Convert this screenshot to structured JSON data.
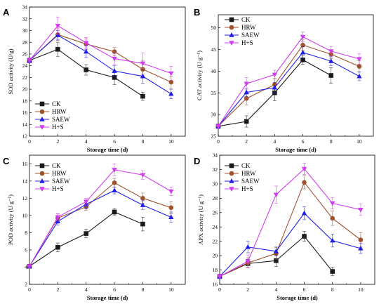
{
  "colors": {
    "CK": "#1a1a1a",
    "HRW": "#a0522d",
    "SAEW": "#1f1fe6",
    "H+S": "#d23cf0"
  },
  "markers": {
    "CK": "square",
    "HRW": "circle",
    "SAEW": "triangle-up",
    "H+S": "triangle-down"
  },
  "chart_data": [
    {
      "panel": "A",
      "type": "line",
      "ylabel": "SOD activity (U/g)",
      "xlabel": "Storage time (d)",
      "xlim": [
        0,
        11
      ],
      "ylim": [
        12,
        34
      ],
      "xticks": [
        0,
        2,
        4,
        6,
        8,
        10
      ],
      "yticks": [
        12,
        14,
        16,
        18,
        20,
        22,
        24,
        26,
        28,
        30,
        32,
        34
      ],
      "legend": "bottom-left",
      "series": [
        {
          "name": "CK",
          "x": [
            0,
            2,
            4,
            6,
            8
          ],
          "values": [
            24.9,
            26.8,
            23.3,
            22.0,
            18.8
          ],
          "err": [
            0.4,
            1.2,
            0.9,
            1.2,
            0.7
          ]
        },
        {
          "name": "HRW",
          "x": [
            0,
            2,
            4,
            6,
            8,
            10
          ],
          "values": [
            24.9,
            29.3,
            27.7,
            26.4,
            23.4,
            21.2
          ],
          "err": [
            0.4,
            1.0,
            0.9,
            0.7,
            1.5,
            1.0
          ]
        },
        {
          "name": "SAEW",
          "x": [
            0,
            2,
            4,
            6,
            8,
            10
          ],
          "values": [
            24.9,
            29.2,
            26.4,
            23.1,
            22.2,
            19.2
          ],
          "err": [
            0.4,
            0.8,
            1.0,
            0.9,
            1.2,
            0.8
          ]
        },
        {
          "name": "H+S",
          "x": [
            0,
            2,
            4,
            6,
            8,
            10
          ],
          "values": [
            24.9,
            30.8,
            27.9,
            25.2,
            24.4,
            22.7
          ],
          "err": [
            0.4,
            1.5,
            0.9,
            1.0,
            1.8,
            1.2
          ]
        }
      ]
    },
    {
      "panel": "B",
      "type": "line",
      "ylabel": "CAT activity (U g⁻¹)",
      "xlabel": "Storage time (d)",
      "xlim": [
        0,
        11
      ],
      "ylim": [
        25,
        53
      ],
      "xticks": [
        0,
        2,
        4,
        6,
        8,
        10
      ],
      "yticks": [
        25,
        30,
        35,
        40,
        45,
        50
      ],
      "legend": "top-left",
      "series": [
        {
          "name": "CK",
          "x": [
            0,
            2,
            4,
            6,
            8
          ],
          "values": [
            27.3,
            28.4,
            35.0,
            42.6,
            39.0
          ],
          "err": [
            0.5,
            1.3,
            1.8,
            1.0,
            1.8
          ]
        },
        {
          "name": "HRW",
          "x": [
            0,
            2,
            4,
            6,
            8,
            10
          ],
          "values": [
            27.3,
            33.7,
            36.9,
            46.0,
            43.9,
            41.1
          ],
          "err": [
            0.5,
            1.5,
            1.4,
            1.2,
            1.0,
            1.3
          ]
        },
        {
          "name": "SAEW",
          "x": [
            0,
            2,
            4,
            6,
            8,
            10
          ],
          "values": [
            27.3,
            35.1,
            36.2,
            44.3,
            42.3,
            38.8
          ],
          "err": [
            0.5,
            1.0,
            1.2,
            1.3,
            1.0,
            1.0
          ]
        },
        {
          "name": "H+S",
          "x": [
            0,
            2,
            4,
            6,
            8,
            10
          ],
          "values": [
            27.3,
            37.1,
            39.2,
            47.9,
            44.6,
            42.8
          ],
          "err": [
            0.5,
            1.4,
            1.0,
            1.1,
            1.0,
            1.2
          ]
        }
      ]
    },
    {
      "panel": "C",
      "type": "line",
      "ylabel": "POD activity (U g⁻¹)",
      "xlabel": "Storage time (d)",
      "xlim": [
        0,
        11
      ],
      "ylim": [
        2,
        17
      ],
      "xticks": [
        0,
        2,
        4,
        6,
        8,
        10
      ],
      "yticks": [
        2,
        4,
        6,
        8,
        10,
        12,
        14,
        16
      ],
      "legend": "top-left",
      "series": [
        {
          "name": "CK",
          "x": [
            0,
            2,
            4,
            6,
            8
          ],
          "values": [
            4.1,
            6.3,
            7.9,
            10.4,
            9.0
          ],
          "err": [
            0.2,
            0.5,
            0.5,
            0.4,
            0.8
          ]
        },
        {
          "name": "HRW",
          "x": [
            0,
            2,
            4,
            6,
            8,
            10
          ],
          "values": [
            4.1,
            9.7,
            11.0,
            13.8,
            12.0,
            10.9
          ],
          "err": [
            0.2,
            0.5,
            0.4,
            0.5,
            0.6,
            0.7
          ]
        },
        {
          "name": "SAEW",
          "x": [
            0,
            2,
            4,
            6,
            8,
            10
          ],
          "values": [
            4.1,
            9.3,
            11.3,
            12.9,
            11.2,
            9.8
          ],
          "err": [
            0.2,
            0.4,
            0.5,
            0.4,
            0.5,
            0.6
          ]
        },
        {
          "name": "H+S",
          "x": [
            0,
            2,
            4,
            6,
            8,
            10
          ],
          "values": [
            4.1,
            9.8,
            11.6,
            15.3,
            14.7,
            12.8
          ],
          "err": [
            0.2,
            0.4,
            0.4,
            0.7,
            0.5,
            0.5
          ]
        }
      ]
    },
    {
      "panel": "D",
      "type": "line",
      "ylabel": "APX activity (U g⁻¹)",
      "xlabel": "Storage time (d)",
      "xlim": [
        0,
        11
      ],
      "ylim": [
        16,
        34
      ],
      "xticks": [
        0,
        2,
        4,
        6,
        8,
        10
      ],
      "yticks": [
        16,
        18,
        20,
        22,
        24,
        26,
        28,
        30,
        32,
        34
      ],
      "legend": "top-left",
      "series": [
        {
          "name": "CK",
          "x": [
            0,
            2,
            4,
            6,
            8
          ],
          "values": [
            17.1,
            18.9,
            19.3,
            22.7,
            17.8
          ],
          "err": [
            0.3,
            0.6,
            0.8,
            0.7,
            0.6
          ]
        },
        {
          "name": "HRW",
          "x": [
            0,
            2,
            4,
            6,
            8,
            10
          ],
          "values": [
            17.1,
            19.0,
            20.3,
            30.2,
            25.2,
            22.2
          ],
          "err": [
            0.3,
            0.7,
            0.8,
            0.9,
            1.0,
            1.0
          ]
        },
        {
          "name": "SAEW",
          "x": [
            0,
            2,
            4,
            6,
            8,
            10
          ],
          "values": [
            17.1,
            21.2,
            20.6,
            25.9,
            22.1,
            21.0
          ],
          "err": [
            0.3,
            0.8,
            0.6,
            0.9,
            0.9,
            0.7
          ]
        },
        {
          "name": "H+S",
          "x": [
            0,
            2,
            4,
            6,
            8,
            10
          ],
          "values": [
            17.1,
            19.2,
            28.5,
            32.1,
            27.3,
            26.4
          ],
          "err": [
            0.3,
            0.9,
            1.2,
            0.8,
            0.8,
            0.8
          ]
        }
      ]
    }
  ]
}
